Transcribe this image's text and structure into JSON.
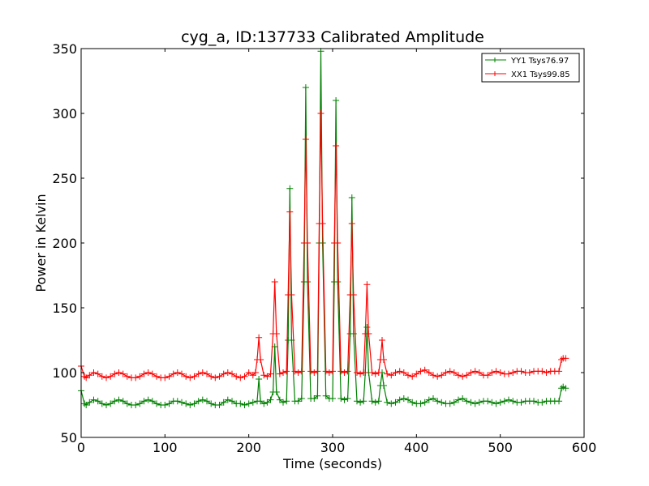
{
  "chart_data": {
    "type": "line",
    "title": "cyg_a, ID:137733 Calibrated Amplitude",
    "xlabel": "Time (seconds)",
    "ylabel": "Power in Kelvin",
    "xlim": [
      0,
      600
    ],
    "ylim": [
      50,
      350
    ],
    "xticks": [
      "0",
      "100",
      "200",
      "300",
      "400",
      "500",
      "600"
    ],
    "yticks": [
      "50",
      "100",
      "150",
      "200",
      "250",
      "300",
      "350"
    ],
    "grid": false,
    "legend_position": "top-right",
    "marker": "plus",
    "series": [
      {
        "name": "YY1 Tsys76.97",
        "color": "#008000",
        "x": [
          0,
          4,
          6,
          10,
          15,
          20,
          25,
          30,
          35,
          40,
          45,
          50,
          55,
          60,
          65,
          70,
          75,
          80,
          85,
          90,
          95,
          100,
          105,
          110,
          115,
          120,
          125,
          130,
          135,
          140,
          145,
          150,
          155,
          160,
          165,
          170,
          175,
          180,
          185,
          190,
          195,
          200,
          205,
          210,
          212,
          214,
          218,
          222,
          226,
          229,
          231,
          233,
          237,
          241,
          245,
          247,
          249,
          251,
          255,
          259,
          263,
          266,
          268,
          270,
          274,
          278,
          282,
          284,
          286,
          288,
          292,
          296,
          300,
          302,
          304,
          306,
          310,
          314,
          318,
          321,
          323,
          325,
          329,
          333,
          337,
          339,
          341,
          343,
          347,
          351,
          355,
          357,
          359,
          361,
          365,
          370,
          375,
          380,
          385,
          390,
          395,
          400,
          405,
          410,
          415,
          420,
          425,
          430,
          435,
          440,
          445,
          450,
          455,
          460,
          465,
          470,
          475,
          480,
          485,
          490,
          495,
          500,
          505,
          510,
          515,
          520,
          525,
          530,
          535,
          540,
          545,
          550,
          555,
          560,
          565,
          570,
          573,
          575,
          578
        ],
        "y": [
          86,
          76,
          75,
          77,
          79,
          78,
          76,
          75,
          76,
          78,
          79,
          78,
          76,
          75,
          75,
          76,
          78,
          79,
          78,
          76,
          75,
          75,
          76,
          78,
          78,
          77,
          76,
          75,
          76,
          78,
          79,
          78,
          76,
          75,
          75,
          77,
          79,
          78,
          76,
          76,
          75,
          76,
          77,
          78,
          95,
          78,
          76,
          77,
          79,
          85,
          120,
          85,
          79,
          77,
          78,
          125,
          242,
          125,
          78,
          78,
          80,
          170,
          320,
          170,
          80,
          80,
          82,
          200,
          348,
          200,
          82,
          80,
          80,
          170,
          310,
          170,
          80,
          79,
          80,
          130,
          235,
          130,
          78,
          77,
          78,
          100,
          135,
          100,
          78,
          77,
          78,
          90,
          100,
          90,
          77,
          76,
          77,
          79,
          80,
          79,
          77,
          76,
          76,
          77,
          79,
          80,
          78,
          77,
          76,
          76,
          77,
          79,
          80,
          78,
          77,
          76,
          77,
          78,
          78,
          77,
          76,
          77,
          78,
          79,
          78,
          77,
          77,
          78,
          78,
          78,
          77,
          77,
          78,
          78,
          78,
          78,
          88,
          89,
          88
        ]
      },
      {
        "name": "XX1 Tsys99.85",
        "color": "#ff0000",
        "x": [
          0,
          4,
          6,
          10,
          15,
          20,
          25,
          30,
          35,
          40,
          45,
          50,
          55,
          60,
          65,
          70,
          75,
          80,
          85,
          90,
          95,
          100,
          105,
          110,
          115,
          120,
          125,
          130,
          135,
          140,
          145,
          150,
          155,
          160,
          165,
          170,
          175,
          180,
          185,
          190,
          195,
          200,
          205,
          208,
          210,
          212,
          214,
          218,
          222,
          226,
          229,
          231,
          233,
          237,
          241,
          245,
          247,
          249,
          251,
          255,
          259,
          263,
          266,
          268,
          270,
          274,
          278,
          282,
          284,
          286,
          288,
          292,
          296,
          300,
          302,
          304,
          306,
          310,
          314,
          318,
          321,
          323,
          325,
          329,
          333,
          337,
          339,
          341,
          343,
          347,
          351,
          355,
          357,
          359,
          361,
          365,
          370,
          375,
          380,
          385,
          390,
          395,
          400,
          405,
          410,
          415,
          420,
          425,
          430,
          435,
          440,
          445,
          450,
          455,
          460,
          465,
          470,
          475,
          480,
          485,
          490,
          495,
          500,
          505,
          510,
          515,
          520,
          525,
          530,
          535,
          540,
          545,
          550,
          555,
          560,
          565,
          570,
          573,
          575,
          578
        ],
        "y": [
          105,
          97,
          96,
          98,
          100,
          99,
          97,
          96,
          97,
          99,
          100,
          99,
          97,
          96,
          96,
          97,
          99,
          100,
          99,
          97,
          96,
          96,
          97,
          99,
          100,
          99,
          97,
          96,
          97,
          99,
          100,
          99,
          97,
          96,
          97,
          99,
          100,
          99,
          97,
          96,
          97,
          100,
          98,
          100,
          110,
          127,
          110,
          98,
          97,
          99,
          130,
          170,
          130,
          99,
          100,
          101,
          160,
          224,
          160,
          101,
          100,
          101,
          200,
          280,
          200,
          101,
          100,
          101,
          215,
          300,
          215,
          101,
          100,
          101,
          200,
          275,
          200,
          101,
          100,
          101,
          160,
          215,
          160,
          100,
          99,
          100,
          130,
          168,
          130,
          100,
          99,
          100,
          110,
          125,
          110,
          99,
          98,
          100,
          101,
          100,
          98,
          97,
          99,
          101,
          102,
          100,
          98,
          97,
          98,
          100,
          101,
          100,
          98,
          97,
          98,
          100,
          101,
          100,
          98,
          98,
          100,
          101,
          100,
          99,
          99,
          100,
          101,
          101,
          100,
          100,
          101,
          101,
          101,
          100,
          101,
          101,
          101,
          110,
          111,
          111
        ]
      }
    ]
  }
}
